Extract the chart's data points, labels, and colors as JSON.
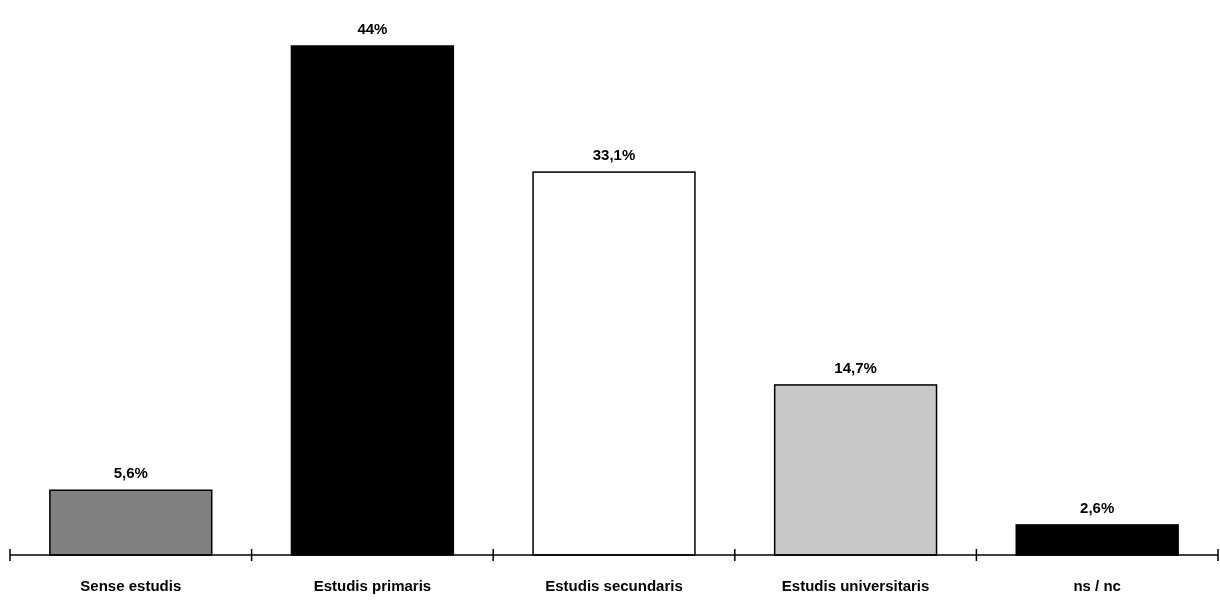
{
  "chart_data": {
    "type": "bar",
    "categories": [
      "Sense estudis",
      "Estudis primaris",
      "Estudis secundaris",
      "Estudis universitaris",
      "ns / nc"
    ],
    "values": [
      5.6,
      44,
      33.1,
      14.7,
      2.6
    ],
    "colors": [
      "#808080",
      "#000000",
      "#ffffff",
      "#c8c8c8",
      "#000000"
    ],
    "value_labels": [
      "5,6%",
      "44%",
      "33,1%",
      "14,7%",
      "2,6%"
    ]
  }
}
